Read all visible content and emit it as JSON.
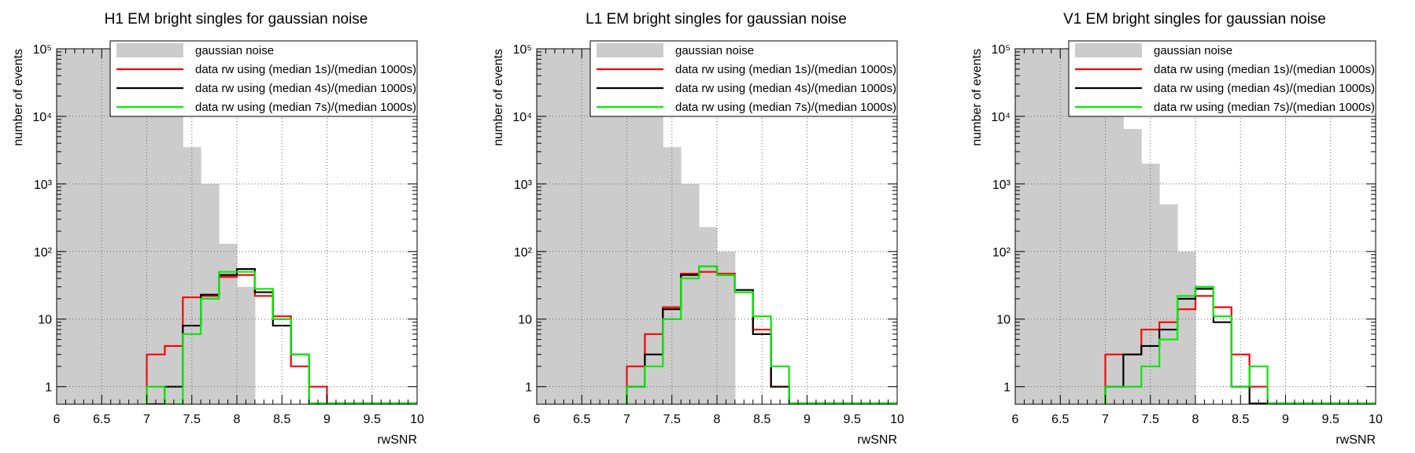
{
  "chart_data": [
    {
      "type": "histogram",
      "title": "H1 EM bright singles for gaussian noise",
      "xlabel": "rwSNR",
      "ylabel": "number of events",
      "xlim": [
        6,
        10
      ],
      "ylim": [
        0.55,
        100000
      ],
      "yscale": "log",
      "grid": true,
      "legend_position": "top-right",
      "bin_width": 0.2,
      "x_ticks": [
        "6",
        "6.5",
        "7",
        "7.5",
        "8",
        "8.5",
        "9",
        "9.5",
        "10"
      ],
      "y_ticks": [
        {
          "label": "1",
          "value": 1
        },
        {
          "label": "10",
          "value": 10
        },
        {
          "label": "10²",
          "value": 100
        },
        {
          "label": "10³",
          "value": 1000
        },
        {
          "label": "10⁴",
          "value": 10000
        },
        {
          "label": "10⁵",
          "value": 100000
        }
      ],
      "series": [
        {
          "name": "gaussian noise",
          "style": "fill",
          "color": "#cccccc",
          "edges": [
            6.0,
            6.2,
            6.4,
            6.6,
            6.8,
            7.0,
            7.2,
            7.4,
            7.6,
            7.8,
            8.0,
            8.2
          ],
          "values": [
            100000,
            100000,
            100000,
            100000,
            100000,
            100000,
            60000,
            3500,
            1000,
            130,
            30
          ]
        },
        {
          "name": "data rw using (median 1s)/(median 1000s)",
          "style": "step",
          "color": "#ff0000",
          "edges": [
            7.0,
            7.2,
            7.4,
            7.6,
            7.8,
            8.0,
            8.2,
            8.4,
            8.6,
            8.8,
            9.0
          ],
          "values": [
            3,
            4,
            21,
            22,
            42,
            45,
            22,
            11,
            2,
            1
          ]
        },
        {
          "name": "data rw using (median 4s)/(median 1000s)",
          "style": "step",
          "color": "#000000",
          "edges": [
            7.0,
            7.2,
            7.4,
            7.6,
            7.8,
            8.0,
            8.2,
            8.4,
            8.6,
            8.8
          ],
          "values": [
            0,
            1,
            8,
            23,
            45,
            55,
            25,
            8,
            3
          ]
        },
        {
          "name": "data rw using (median 7s)/(median 1000s)",
          "style": "step",
          "color": "#00ee00",
          "edges": [
            7.0,
            7.2,
            7.4,
            7.6,
            7.8,
            8.0,
            8.2,
            8.4,
            8.6,
            8.8
          ],
          "values": [
            1,
            0,
            6,
            20,
            50,
            50,
            28,
            10,
            3
          ]
        }
      ]
    },
    {
      "type": "histogram",
      "title": "L1 EM bright singles for gaussian noise",
      "xlabel": "rwSNR",
      "ylabel": "number of events",
      "xlim": [
        6,
        10
      ],
      "ylim": [
        0.55,
        100000
      ],
      "yscale": "log",
      "grid": true,
      "legend_position": "top-right",
      "bin_width": 0.2,
      "x_ticks": [
        "6",
        "6.5",
        "7",
        "7.5",
        "8",
        "8.5",
        "9",
        "9.5",
        "10"
      ],
      "y_ticks": [
        {
          "label": "1",
          "value": 1
        },
        {
          "label": "10",
          "value": 10
        },
        {
          "label": "10²",
          "value": 100
        },
        {
          "label": "10³",
          "value": 1000
        },
        {
          "label": "10⁴",
          "value": 10000
        },
        {
          "label": "10⁵",
          "value": 100000
        }
      ],
      "series": [
        {
          "name": "gaussian noise",
          "style": "fill",
          "color": "#cccccc",
          "edges": [
            6.0,
            6.2,
            6.4,
            6.6,
            6.8,
            7.0,
            7.2,
            7.4,
            7.6,
            7.8,
            8.0,
            8.2
          ],
          "values": [
            100000,
            100000,
            100000,
            100000,
            100000,
            100000,
            60000,
            3500,
            1000,
            230,
            100
          ]
        },
        {
          "name": "data rw using (median 1s)/(median 1000s)",
          "style": "step",
          "color": "#ff0000",
          "edges": [
            7.0,
            7.2,
            7.4,
            7.6,
            7.8,
            8.0,
            8.2,
            8.4,
            8.6,
            8.8
          ],
          "values": [
            2,
            6,
            15,
            47,
            50,
            47,
            25,
            7,
            1
          ]
        },
        {
          "name": "data rw using (median 4s)/(median 1000s)",
          "style": "step",
          "color": "#000000",
          "edges": [
            7.0,
            7.2,
            7.4,
            7.6,
            7.8,
            8.0,
            8.2,
            8.4,
            8.6,
            8.8
          ],
          "values": [
            1,
            3,
            14,
            45,
            60,
            45,
            27,
            6,
            1
          ]
        },
        {
          "name": "data rw using (median 7s)/(median 1000s)",
          "style": "step",
          "color": "#00ee00",
          "edges": [
            7.0,
            7.2,
            7.4,
            7.6,
            7.8,
            8.0,
            8.2,
            8.4,
            8.6,
            8.8
          ],
          "values": [
            1,
            2,
            10,
            40,
            60,
            45,
            25,
            11,
            2
          ]
        }
      ]
    },
    {
      "type": "histogram",
      "title": "V1 EM bright singles for gaussian noise",
      "xlabel": "rwSNR",
      "ylabel": "number of events",
      "xlim": [
        6,
        10
      ],
      "ylim": [
        0.55,
        100000
      ],
      "yscale": "log",
      "grid": true,
      "legend_position": "top-right",
      "bin_width": 0.2,
      "x_ticks": [
        "6",
        "6.5",
        "7",
        "7.5",
        "8",
        "8.5",
        "9",
        "9.5",
        "10"
      ],
      "y_ticks": [
        {
          "label": "1",
          "value": 1
        },
        {
          "label": "10",
          "value": 10
        },
        {
          "label": "10²",
          "value": 100
        },
        {
          "label": "10³",
          "value": 1000
        },
        {
          "label": "10⁴",
          "value": 10000
        },
        {
          "label": "10⁵",
          "value": 100000
        }
      ],
      "series": [
        {
          "name": "gaussian noise",
          "style": "fill",
          "color": "#cccccc",
          "edges": [
            6.0,
            6.2,
            6.4,
            6.6,
            6.8,
            7.0,
            7.2,
            7.4,
            7.6,
            7.8,
            8.0
          ],
          "values": [
            100000,
            100000,
            100000,
            100000,
            100000,
            40000,
            6500,
            2000,
            500,
            100
          ]
        },
        {
          "name": "data rw using (median 1s)/(median 1000s)",
          "style": "step",
          "color": "#ff0000",
          "edges": [
            7.0,
            7.2,
            7.4,
            7.6,
            7.8,
            8.0,
            8.2,
            8.4,
            8.6,
            8.8
          ],
          "values": [
            3,
            3,
            7,
            9,
            14,
            22,
            15,
            3,
            1
          ]
        },
        {
          "name": "data rw using (median 4s)/(median 1000s)",
          "style": "step",
          "color": "#000000",
          "edges": [
            7.0,
            7.2,
            7.4,
            7.6,
            7.8,
            8.0,
            8.2,
            8.4,
            8.6
          ],
          "values": [
            1,
            3,
            4,
            7,
            20,
            28,
            9,
            1
          ]
        },
        {
          "name": "data rw using (median 7s)/(median 1000s)",
          "style": "step",
          "color": "#00ee00",
          "edges": [
            7.0,
            7.2,
            7.4,
            7.6,
            7.8,
            8.0,
            8.2,
            8.4,
            8.6,
            8.8
          ],
          "values": [
            1,
            1,
            2,
            5,
            22,
            30,
            11,
            1,
            2
          ]
        }
      ]
    }
  ]
}
